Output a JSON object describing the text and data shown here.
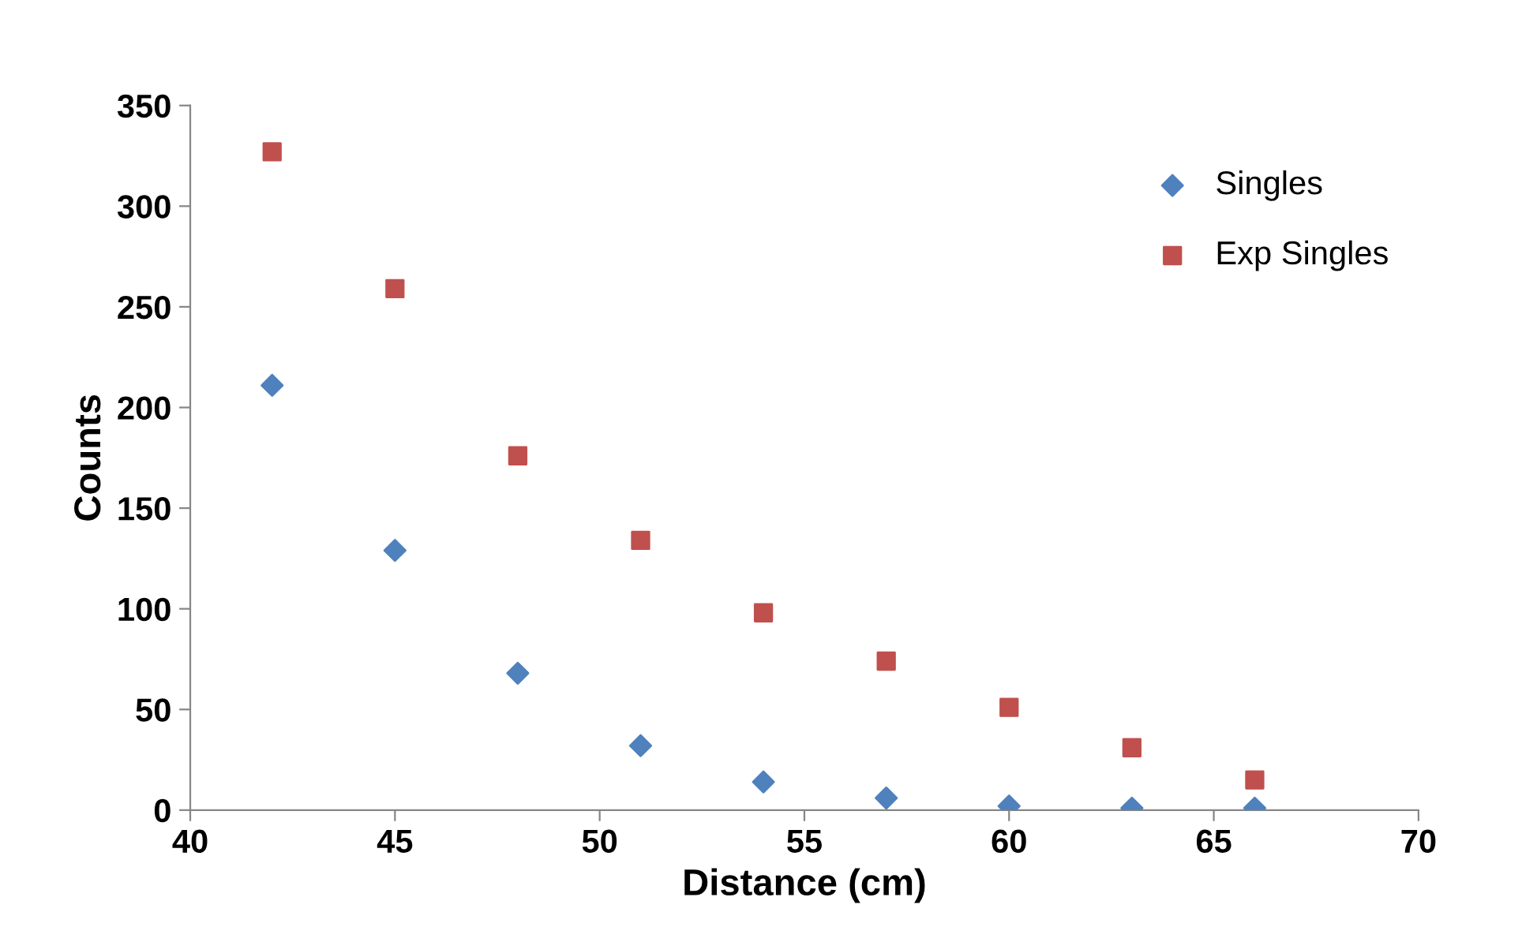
{
  "chart_data": {
    "type": "scatter",
    "xlabel": "Distance (cm)",
    "ylabel": "Counts",
    "x": [
      42,
      45,
      48,
      51,
      54,
      57,
      60,
      63,
      66
    ],
    "series": [
      {
        "name": "Singles",
        "color": "#4f81bd",
        "marker": "diamond",
        "values": [
          211,
          129,
          68,
          32,
          14,
          6,
          2,
          1,
          1
        ]
      },
      {
        "name": "Exp Singles",
        "color": "#c0504d",
        "marker": "square",
        "values": [
          327,
          259,
          176,
          134,
          98,
          74,
          51,
          31,
          15
        ]
      }
    ],
    "xlim": [
      40,
      70
    ],
    "xticks": [
      40,
      45,
      50,
      55,
      60,
      65,
      70
    ],
    "ylim": [
      0,
      350
    ],
    "yticks": [
      0,
      50,
      100,
      150,
      200,
      250,
      300,
      350
    ],
    "grid": false,
    "legend": "top right"
  }
}
